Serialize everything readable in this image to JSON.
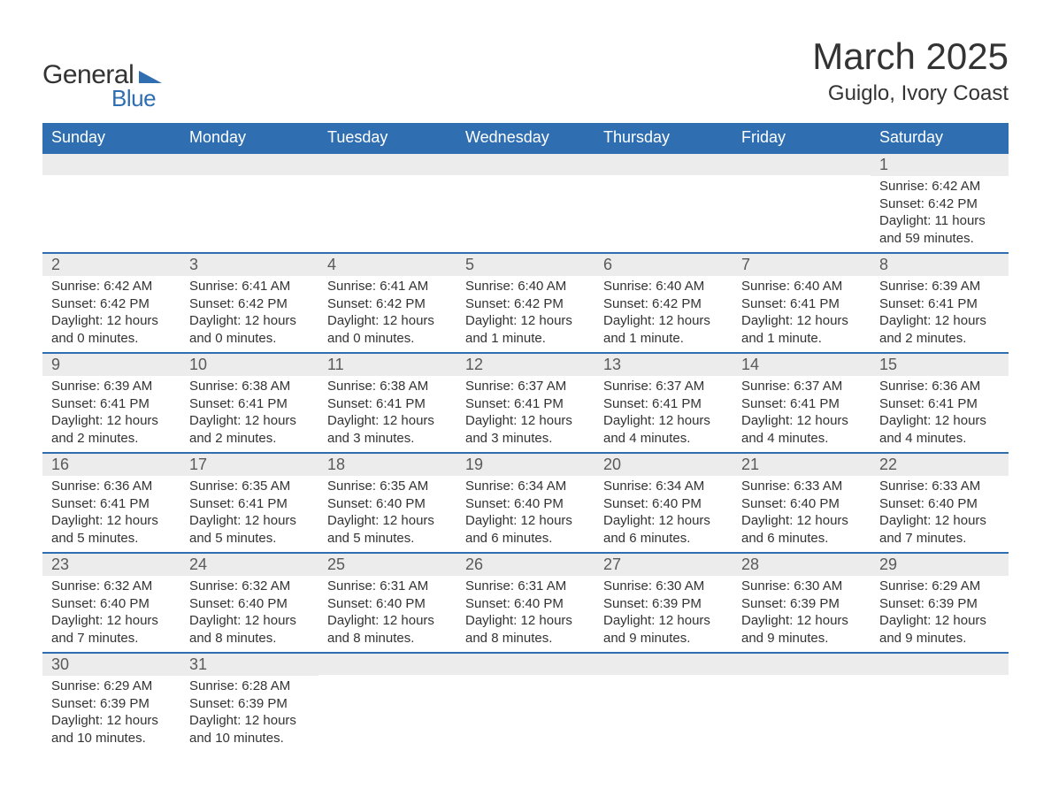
{
  "logo": {
    "word1": "General",
    "word2": "Blue",
    "shape_color": "#2f6eb0"
  },
  "title": "March 2025",
  "location": "Guiglo, Ivory Coast",
  "colors": {
    "header_bg": "#2f6eb0",
    "header_fg": "#ffffff",
    "daynum_bg": "#ececec",
    "border": "#2f6eb0",
    "text": "#333333"
  },
  "weekdays": [
    "Sunday",
    "Monday",
    "Tuesday",
    "Wednesday",
    "Thursday",
    "Friday",
    "Saturday"
  ],
  "weeks": [
    [
      {
        "day": "",
        "sunrise": "",
        "sunset": "",
        "daylight": ""
      },
      {
        "day": "",
        "sunrise": "",
        "sunset": "",
        "daylight": ""
      },
      {
        "day": "",
        "sunrise": "",
        "sunset": "",
        "daylight": ""
      },
      {
        "day": "",
        "sunrise": "",
        "sunset": "",
        "daylight": ""
      },
      {
        "day": "",
        "sunrise": "",
        "sunset": "",
        "daylight": ""
      },
      {
        "day": "",
        "sunrise": "",
        "sunset": "",
        "daylight": ""
      },
      {
        "day": "1",
        "sunrise": "Sunrise: 6:42 AM",
        "sunset": "Sunset: 6:42 PM",
        "daylight": "Daylight: 11 hours and 59 minutes."
      }
    ],
    [
      {
        "day": "2",
        "sunrise": "Sunrise: 6:42 AM",
        "sunset": "Sunset: 6:42 PM",
        "daylight": "Daylight: 12 hours and 0 minutes."
      },
      {
        "day": "3",
        "sunrise": "Sunrise: 6:41 AM",
        "sunset": "Sunset: 6:42 PM",
        "daylight": "Daylight: 12 hours and 0 minutes."
      },
      {
        "day": "4",
        "sunrise": "Sunrise: 6:41 AM",
        "sunset": "Sunset: 6:42 PM",
        "daylight": "Daylight: 12 hours and 0 minutes."
      },
      {
        "day": "5",
        "sunrise": "Sunrise: 6:40 AM",
        "sunset": "Sunset: 6:42 PM",
        "daylight": "Daylight: 12 hours and 1 minute."
      },
      {
        "day": "6",
        "sunrise": "Sunrise: 6:40 AM",
        "sunset": "Sunset: 6:42 PM",
        "daylight": "Daylight: 12 hours and 1 minute."
      },
      {
        "day": "7",
        "sunrise": "Sunrise: 6:40 AM",
        "sunset": "Sunset: 6:41 PM",
        "daylight": "Daylight: 12 hours and 1 minute."
      },
      {
        "day": "8",
        "sunrise": "Sunrise: 6:39 AM",
        "sunset": "Sunset: 6:41 PM",
        "daylight": "Daylight: 12 hours and 2 minutes."
      }
    ],
    [
      {
        "day": "9",
        "sunrise": "Sunrise: 6:39 AM",
        "sunset": "Sunset: 6:41 PM",
        "daylight": "Daylight: 12 hours and 2 minutes."
      },
      {
        "day": "10",
        "sunrise": "Sunrise: 6:38 AM",
        "sunset": "Sunset: 6:41 PM",
        "daylight": "Daylight: 12 hours and 2 minutes."
      },
      {
        "day": "11",
        "sunrise": "Sunrise: 6:38 AM",
        "sunset": "Sunset: 6:41 PM",
        "daylight": "Daylight: 12 hours and 3 minutes."
      },
      {
        "day": "12",
        "sunrise": "Sunrise: 6:37 AM",
        "sunset": "Sunset: 6:41 PM",
        "daylight": "Daylight: 12 hours and 3 minutes."
      },
      {
        "day": "13",
        "sunrise": "Sunrise: 6:37 AM",
        "sunset": "Sunset: 6:41 PM",
        "daylight": "Daylight: 12 hours and 4 minutes."
      },
      {
        "day": "14",
        "sunrise": "Sunrise: 6:37 AM",
        "sunset": "Sunset: 6:41 PM",
        "daylight": "Daylight: 12 hours and 4 minutes."
      },
      {
        "day": "15",
        "sunrise": "Sunrise: 6:36 AM",
        "sunset": "Sunset: 6:41 PM",
        "daylight": "Daylight: 12 hours and 4 minutes."
      }
    ],
    [
      {
        "day": "16",
        "sunrise": "Sunrise: 6:36 AM",
        "sunset": "Sunset: 6:41 PM",
        "daylight": "Daylight: 12 hours and 5 minutes."
      },
      {
        "day": "17",
        "sunrise": "Sunrise: 6:35 AM",
        "sunset": "Sunset: 6:41 PM",
        "daylight": "Daylight: 12 hours and 5 minutes."
      },
      {
        "day": "18",
        "sunrise": "Sunrise: 6:35 AM",
        "sunset": "Sunset: 6:40 PM",
        "daylight": "Daylight: 12 hours and 5 minutes."
      },
      {
        "day": "19",
        "sunrise": "Sunrise: 6:34 AM",
        "sunset": "Sunset: 6:40 PM",
        "daylight": "Daylight: 12 hours and 6 minutes."
      },
      {
        "day": "20",
        "sunrise": "Sunrise: 6:34 AM",
        "sunset": "Sunset: 6:40 PM",
        "daylight": "Daylight: 12 hours and 6 minutes."
      },
      {
        "day": "21",
        "sunrise": "Sunrise: 6:33 AM",
        "sunset": "Sunset: 6:40 PM",
        "daylight": "Daylight: 12 hours and 6 minutes."
      },
      {
        "day": "22",
        "sunrise": "Sunrise: 6:33 AM",
        "sunset": "Sunset: 6:40 PM",
        "daylight": "Daylight: 12 hours and 7 minutes."
      }
    ],
    [
      {
        "day": "23",
        "sunrise": "Sunrise: 6:32 AM",
        "sunset": "Sunset: 6:40 PM",
        "daylight": "Daylight: 12 hours and 7 minutes."
      },
      {
        "day": "24",
        "sunrise": "Sunrise: 6:32 AM",
        "sunset": "Sunset: 6:40 PM",
        "daylight": "Daylight: 12 hours and 8 minutes."
      },
      {
        "day": "25",
        "sunrise": "Sunrise: 6:31 AM",
        "sunset": "Sunset: 6:40 PM",
        "daylight": "Daylight: 12 hours and 8 minutes."
      },
      {
        "day": "26",
        "sunrise": "Sunrise: 6:31 AM",
        "sunset": "Sunset: 6:40 PM",
        "daylight": "Daylight: 12 hours and 8 minutes."
      },
      {
        "day": "27",
        "sunrise": "Sunrise: 6:30 AM",
        "sunset": "Sunset: 6:39 PM",
        "daylight": "Daylight: 12 hours and 9 minutes."
      },
      {
        "day": "28",
        "sunrise": "Sunrise: 6:30 AM",
        "sunset": "Sunset: 6:39 PM",
        "daylight": "Daylight: 12 hours and 9 minutes."
      },
      {
        "day": "29",
        "sunrise": "Sunrise: 6:29 AM",
        "sunset": "Sunset: 6:39 PM",
        "daylight": "Daylight: 12 hours and 9 minutes."
      }
    ],
    [
      {
        "day": "30",
        "sunrise": "Sunrise: 6:29 AM",
        "sunset": "Sunset: 6:39 PM",
        "daylight": "Daylight: 12 hours and 10 minutes."
      },
      {
        "day": "31",
        "sunrise": "Sunrise: 6:28 AM",
        "sunset": "Sunset: 6:39 PM",
        "daylight": "Daylight: 12 hours and 10 minutes."
      },
      {
        "day": "",
        "sunrise": "",
        "sunset": "",
        "daylight": ""
      },
      {
        "day": "",
        "sunrise": "",
        "sunset": "",
        "daylight": ""
      },
      {
        "day": "",
        "sunrise": "",
        "sunset": "",
        "daylight": ""
      },
      {
        "day": "",
        "sunrise": "",
        "sunset": "",
        "daylight": ""
      },
      {
        "day": "",
        "sunrise": "",
        "sunset": "",
        "daylight": ""
      }
    ]
  ]
}
